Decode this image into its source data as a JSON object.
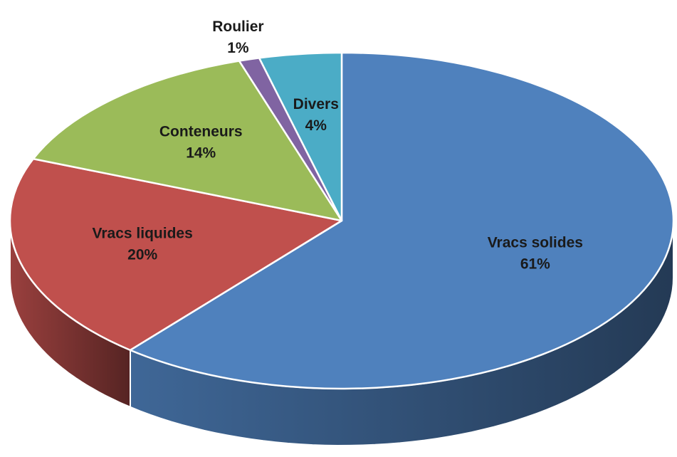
{
  "chart_data": {
    "type": "pie3d",
    "categories": [
      "Vracs solides",
      "Vracs liquides",
      "Conteneurs",
      "Roulier",
      "Divers"
    ],
    "values": [
      61,
      20,
      14,
      1,
      4
    ],
    "value_labels": [
      "61%",
      "20%",
      "14%",
      "1%",
      "4%"
    ],
    "colors": [
      "#4f81bd",
      "#c0504d",
      "#9bbb59",
      "#8064a2",
      "#4bacc6"
    ]
  }
}
